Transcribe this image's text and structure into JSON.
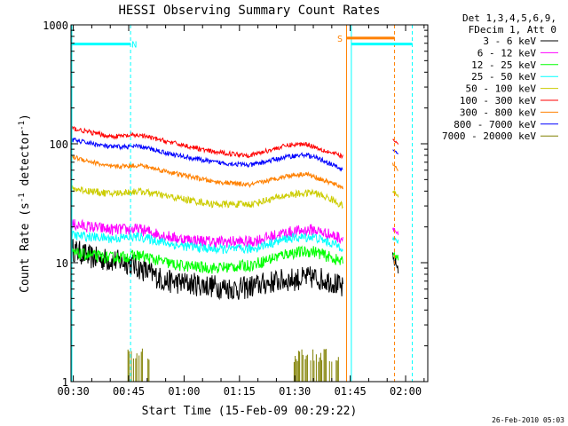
{
  "chart_data": {
    "type": "line",
    "title": "HESSI Observing Summary Count Rates",
    "xlabel": "Start Time (15-Feb-09 00:29:22)",
    "ylabel": "Count Rate (s-1 detector-1)",
    "y_scale": "log",
    "ylim": [
      1,
      1000
    ],
    "xlim_minutes": [
      29.37,
      126.0
    ],
    "x_ticks": [
      {
        "label": "00:30",
        "minute": 30
      },
      {
        "label": "00:45",
        "minute": 45
      },
      {
        "label": "01:00",
        "minute": 60
      },
      {
        "label": "01:15",
        "minute": 75
      },
      {
        "label": "01:30",
        "minute": 90
      },
      {
        "label": "01:45",
        "minute": 105
      },
      {
        "label": "02:00",
        "minute": 120
      }
    ],
    "y_ticks": [
      {
        "label": "1",
        "value": 1
      },
      {
        "label": "10",
        "value": 10
      },
      {
        "label": "100",
        "value": 100
      },
      {
        "label": "1000",
        "value": 1000
      }
    ],
    "legend_header": [
      "Det 1,3,4,5,6,9,",
      "FDecim 1, Att 0"
    ],
    "legend_position": "right",
    "series": [
      {
        "name": "3 - 6 keV",
        "color": "#000000",
        "noise": 0.1,
        "points": [
          [
            29.6,
            13
          ],
          [
            35,
            11
          ],
          [
            45,
            10
          ],
          [
            55,
            7
          ],
          [
            65,
            6.5
          ],
          [
            75,
            6
          ],
          [
            85,
            7
          ],
          [
            95,
            7.5
          ],
          [
            100,
            7
          ],
          [
            103,
            6
          ]
        ],
        "points_after": [
          [
            116.5,
            11
          ],
          [
            118,
            9
          ]
        ]
      },
      {
        "name": "6 - 12 keV",
        "color": "#ff00ff",
        "noise": 0.05,
        "points": [
          [
            29.6,
            21
          ],
          [
            40,
            19
          ],
          [
            48,
            19
          ],
          [
            58,
            16
          ],
          [
            68,
            15
          ],
          [
            78,
            15
          ],
          [
            88,
            18
          ],
          [
            95,
            19
          ],
          [
            100,
            17
          ],
          [
            103,
            16
          ]
        ],
        "points_after": [
          [
            116.5,
            20
          ],
          [
            118,
            17
          ]
        ]
      },
      {
        "name": "12 - 25 keV",
        "color": "#00ff00",
        "noise": 0.05,
        "points": [
          [
            29.6,
            12
          ],
          [
            40,
            11
          ],
          [
            48,
            11.5
          ],
          [
            58,
            9.5
          ],
          [
            68,
            9
          ],
          [
            78,
            9.5
          ],
          [
            88,
            12
          ],
          [
            95,
            12.5
          ],
          [
            100,
            11
          ],
          [
            103,
            10
          ]
        ],
        "points_after": [
          [
            116.5,
            12
          ],
          [
            118,
            11
          ]
        ]
      },
      {
        "name": "25 - 50 keV",
        "color": "#00ffff",
        "noise": 0.04,
        "points": [
          [
            29.6,
            17
          ],
          [
            40,
            16
          ],
          [
            48,
            16.5
          ],
          [
            58,
            14
          ],
          [
            68,
            13
          ],
          [
            78,
            13
          ],
          [
            88,
            16
          ],
          [
            95,
            16.5
          ],
          [
            100,
            14.5
          ],
          [
            103,
            13.5
          ]
        ],
        "points_after": [
          [
            116.5,
            16
          ],
          [
            118,
            15
          ]
        ]
      },
      {
        "name": "50 - 100 keV",
        "color": "#cccc00",
        "noise": 0.03,
        "points": [
          [
            29.6,
            42
          ],
          [
            40,
            38
          ],
          [
            48,
            40
          ],
          [
            58,
            35
          ],
          [
            68,
            31
          ],
          [
            78,
            31
          ],
          [
            88,
            37
          ],
          [
            95,
            39
          ],
          [
            100,
            34
          ],
          [
            103,
            30
          ]
        ],
        "points_after": [
          [
            116.5,
            40
          ],
          [
            118,
            36
          ]
        ]
      },
      {
        "name": "100 - 300 keV",
        "color": "#ff0000",
        "noise": 0.02,
        "points": [
          [
            29.6,
            135
          ],
          [
            40,
            115
          ],
          [
            48,
            118
          ],
          [
            58,
            100
          ],
          [
            68,
            85
          ],
          [
            78,
            80
          ],
          [
            88,
            97
          ],
          [
            93,
            100
          ],
          [
            98,
            88
          ],
          [
            103,
            78
          ]
        ],
        "points_after": [
          [
            116.5,
            108
          ],
          [
            118,
            100
          ]
        ]
      },
      {
        "name": "300 - 800 keV",
        "color": "#ff8000",
        "noise": 0.02,
        "points": [
          [
            29.6,
            78
          ],
          [
            40,
            64
          ],
          [
            48,
            66
          ],
          [
            58,
            56
          ],
          [
            68,
            48
          ],
          [
            78,
            45
          ],
          [
            88,
            54
          ],
          [
            93,
            56
          ],
          [
            98,
            49
          ],
          [
            103,
            43
          ]
        ],
        "points_after": [
          [
            116.5,
            68
          ],
          [
            118,
            60
          ]
        ]
      },
      {
        "name": "800 - 7000 keV",
        "color": "#0000ff",
        "noise": 0.02,
        "points": [
          [
            29.6,
            108
          ],
          [
            40,
            94
          ],
          [
            48,
            95
          ],
          [
            58,
            80
          ],
          [
            68,
            70
          ],
          [
            78,
            66
          ],
          [
            88,
            78
          ],
          [
            93,
            81
          ],
          [
            98,
            72
          ],
          [
            103,
            60
          ]
        ],
        "points_after": [
          [
            116.5,
            90
          ],
          [
            118,
            82
          ]
        ]
      },
      {
        "name": "7000 - 20000 keV",
        "color": "#808000",
        "noise": 0,
        "points": [],
        "points_after": []
      }
    ],
    "spikes_7000_keV": {
      "ranges_minutes": [
        [
          44.5,
          50.5
        ],
        [
          89.5,
          102
        ]
      ],
      "value_low": 1,
      "value_high": 1.9
    },
    "saa_flags": {
      "color": "#00ffff",
      "level": 690,
      "segments": [
        [
          29.6,
          45.5
        ],
        [
          105.3,
          121.8
        ]
      ],
      "label": "N",
      "label_minute": 46.5
    },
    "night_flags": {
      "color": "#ff8000",
      "level": 775,
      "segments": [
        [
          104.0,
          117.0
        ]
      ],
      "label": "S",
      "label_minute": 102.2
    },
    "vertical_markers": [
      {
        "minute": 29.6,
        "color": "#00ffff",
        "style": "solid"
      },
      {
        "minute": 45.5,
        "color": "#00ffff",
        "style": "dashed"
      },
      {
        "minute": 104.0,
        "color": "#ff8000",
        "style": "solid"
      },
      {
        "minute": 105.3,
        "color": "#00ffff",
        "style": "solid"
      },
      {
        "minute": 117.0,
        "color": "#ff8000",
        "style": "dashed"
      },
      {
        "minute": 121.8,
        "color": "#00ffff",
        "style": "dashed"
      }
    ],
    "timestamp": "26-Feb-2010 05:03"
  }
}
